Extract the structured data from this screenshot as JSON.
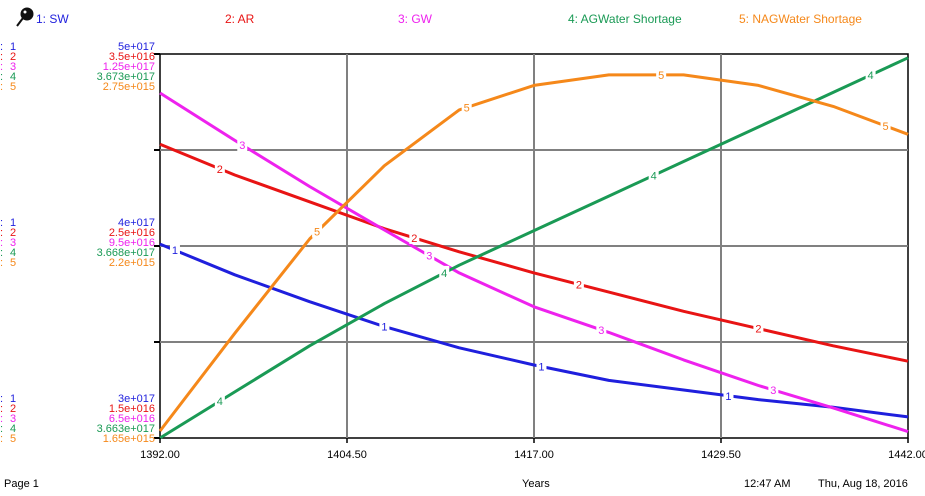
{
  "footer": {
    "page": "Page 1",
    "time": "12:47 AM",
    "date": "Thu, Aug 18, 2016"
  },
  "colors": {
    "SW": "#1f1fdd",
    "AR": "#e81414",
    "GW": "#ee22ee",
    "AGWater Shortage": "#1a9a55",
    "NAGWater Shortage": "#f5881a"
  },
  "chart_data": {
    "type": "line",
    "xlabel": "Years",
    "xlim": [
      1392,
      1442
    ],
    "x_ticks": [
      "1392.00",
      "1404.50",
      "1417.00",
      "1429.50",
      "1442.00"
    ],
    "grid": true,
    "series": [
      {
        "index": "1",
        "legend": "1: SW",
        "name": "SW",
        "color_key": "SW",
        "scale": [
          "5e+017",
          "4e+017",
          "3e+017"
        ],
        "ylim": [
          3e+17,
          5e+17
        ],
        "x": [
          1392,
          1397,
          1402,
          1407,
          1412,
          1417,
          1422,
          1427,
          1432,
          1437,
          1442
        ],
        "y": [
          4.01e+17,
          3.85e+17,
          3.71e+17,
          3.58e+17,
          3.47e+17,
          3.38e+17,
          3.3e+17,
          3.25e+17,
          3.2e+17,
          3.16e+17,
          3.11e+17
        ],
        "markers": [
          1393,
          1407,
          1417.5,
          1430
        ]
      },
      {
        "index": "2",
        "legend": "2: AR",
        "name": "AR",
        "color_key": "AR",
        "scale": [
          "3.5e+016",
          "2.5e+016",
          "1.5e+016"
        ],
        "ylim": [
          1.5e+16,
          3.5e+16
        ],
        "x": [
          1392,
          1397,
          1402,
          1407,
          1412,
          1417,
          1422,
          1427,
          1432,
          1437,
          1442
        ],
        "y": [
          3.03e+16,
          2.87e+16,
          2.73e+16,
          2.59e+16,
          2.47e+16,
          2.36e+16,
          2.26e+16,
          2.16e+16,
          2.07e+16,
          1.98e+16,
          1.9e+16
        ],
        "markers": [
          1396,
          1409,
          1420,
          1432
        ]
      },
      {
        "index": "3",
        "legend": "3: GW",
        "name": "GW",
        "color_key": "GW",
        "scale": [
          "1.25e+017",
          "9.5e+016",
          "6.5e+016"
        ],
        "ylim": [
          6.5e+16,
          1.25e+17
        ],
        "x": [
          1392,
          1397,
          1402,
          1407,
          1412,
          1417,
          1422,
          1427,
          1432,
          1437,
          1442
        ],
        "y": [
          1.189e+17,
          1.115e+17,
          1.043e+17,
          9.75e+16,
          9.08e+16,
          8.55e+16,
          8.15e+16,
          7.72e+16,
          7.32e+16,
          6.97e+16,
          6.6e+16
        ],
        "markers": [
          1397.5,
          1410,
          1421.5,
          1433
        ]
      },
      {
        "index": "4",
        "legend": "4: AGWater Shortage",
        "name": "AGWater Shortage",
        "color_key": "AGWater Shortage",
        "scale": [
          "3.673e+017",
          "3.668e+017",
          "3.663e+017"
        ],
        "ylim": [
          3.663e+17,
          3.673e+17
        ],
        "x": [
          1392,
          1397,
          1402,
          1407,
          1412,
          1417,
          1422,
          1427,
          1432,
          1437,
          1442
        ],
        "y": [
          3.663e+17,
          3.6642e+17,
          3.6654e+17,
          3.6665e+17,
          3.6675e+17,
          3.6684e+17,
          3.6693e+17,
          3.6702e+17,
          3.6711e+17,
          3.672e+17,
          3.6729e+17
        ],
        "markers": [
          1396,
          1411,
          1425,
          1439.5
        ]
      },
      {
        "index": "5",
        "legend": "5: NAGWater Shortage",
        "name": "NAGWater Shortage",
        "color_key": "NAGWater Shortage",
        "scale": [
          "2.75e+015",
          "2.2e+015",
          "1.65e+015"
        ],
        "ylim": [
          1650000000000000.0,
          2750000000000000.0
        ],
        "x": [
          1392,
          1397,
          1402,
          1407,
          1412,
          1417,
          1422,
          1427,
          1432,
          1437,
          1442
        ],
        "y": [
          1670000000000000.0,
          1950000000000000.0,
          2220000000000000.0,
          2430000000000000.0,
          2590000000000000.0,
          2660000000000000.0,
          2690000000000000.0,
          2690000000000000.0,
          2660000000000000.0,
          2600000000000000.0,
          2520000000000000.0
        ],
        "markers": [
          1402.5,
          1412.5,
          1425.5,
          1440.5
        ]
      }
    ]
  }
}
